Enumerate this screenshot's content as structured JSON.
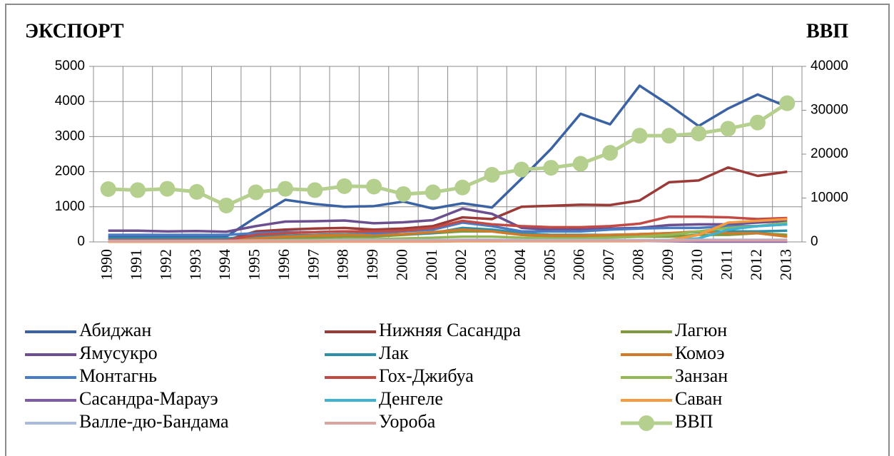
{
  "chart_data": {
    "type": "line",
    "title": "ЭКСПОРТ",
    "y2_title": "ВВП",
    "categories": [
      "1990",
      "1991",
      "1992",
      "1993",
      "1994",
      "1995",
      "1996",
      "1997",
      "1998",
      "1999",
      "2000",
      "2001",
      "2002",
      "2003",
      "2004",
      "2005",
      "2006",
      "2007",
      "2008",
      "2009",
      "2010",
      "2011",
      "2012",
      "2013"
    ],
    "ylim": [
      0,
      5000
    ],
    "yticks": [
      0,
      1000,
      2000,
      3000,
      4000,
      5000
    ],
    "y2lim": [
      0,
      40000
    ],
    "y2ticks": [
      0,
      10000,
      20000,
      30000,
      40000
    ],
    "grid": true,
    "series": [
      {
        "name": "Абиджан",
        "color": "#3b62a3",
        "values": [
          150,
          150,
          150,
          150,
          150,
          700,
          1200,
          1080,
          1000,
          1020,
          1150,
          950,
          1100,
          980,
          1800,
          2650,
          3650,
          3350,
          4450,
          3900,
          3300,
          3800,
          4200,
          3850
        ]
      },
      {
        "name": "Нижняя Сасандра",
        "color": "#9b3a36",
        "values": [
          50,
          50,
          50,
          50,
          50,
          300,
          350,
          380,
          400,
          350,
          380,
          450,
          700,
          650,
          1000,
          1030,
          1060,
          1050,
          1180,
          1700,
          1750,
          2120,
          1880,
          2000
        ]
      },
      {
        "name": "Лагюн",
        "color": "#7f9a3e",
        "values": [
          20,
          20,
          20,
          20,
          20,
          80,
          100,
          120,
          150,
          150,
          200,
          250,
          300,
          300,
          200,
          150,
          150,
          150,
          150,
          150,
          200,
          200,
          250,
          200
        ]
      },
      {
        "name": "Ямусукро",
        "color": "#6b4f8e",
        "values": [
          320,
          320,
          300,
          310,
          290,
          450,
          580,
          590,
          610,
          530,
          560,
          620,
          950,
          800,
          400,
          350,
          350,
          380,
          400,
          480,
          500,
          500,
          550,
          600
        ]
      },
      {
        "name": "Лак",
        "color": "#2e8fa8",
        "values": [
          100,
          100,
          100,
          100,
          100,
          150,
          180,
          200,
          220,
          200,
          220,
          250,
          400,
          350,
          250,
          200,
          200,
          200,
          220,
          250,
          280,
          300,
          300,
          320
        ]
      },
      {
        "name": "Комоэ",
        "color": "#d07a2a",
        "values": [
          30,
          30,
          30,
          30,
          30,
          100,
          150,
          180,
          200,
          200,
          220,
          280,
          350,
          300,
          200,
          180,
          180,
          200,
          220,
          250,
          300,
          250,
          250,
          150
        ]
      },
      {
        "name": "Монтагнь",
        "color": "#4a7cc4",
        "values": [
          200,
          200,
          200,
          200,
          200,
          250,
          280,
          280,
          300,
          250,
          300,
          350,
          550,
          450,
          300,
          300,
          300,
          350,
          380,
          400,
          400,
          450,
          450,
          500
        ]
      },
      {
        "name": "Гох-Джибуа",
        "color": "#c24a45",
        "values": [
          50,
          50,
          50,
          50,
          50,
          200,
          250,
          280,
          300,
          300,
          320,
          400,
          600,
          500,
          450,
          420,
          420,
          450,
          520,
          720,
          720,
          700,
          650,
          680
        ]
      },
      {
        "name": "Занзан",
        "color": "#95b856",
        "values": [
          10,
          10,
          10,
          10,
          10,
          30,
          50,
          60,
          80,
          80,
          100,
          120,
          150,
          150,
          120,
          100,
          100,
          120,
          150,
          200,
          300,
          400,
          450,
          550
        ]
      },
      {
        "name": "Сасандра-Марауэ",
        "color": "#7d5ba6",
        "values": [
          5,
          5,
          5,
          5,
          5,
          10,
          20,
          20,
          30,
          30,
          30,
          40,
          50,
          50,
          40,
          30,
          30,
          30,
          30,
          20,
          10,
          10,
          10,
          10
        ]
      },
      {
        "name": "Денгеле",
        "color": "#3fb2cf",
        "values": [
          5,
          5,
          5,
          5,
          5,
          10,
          10,
          10,
          20,
          20,
          20,
          30,
          30,
          30,
          30,
          30,
          30,
          30,
          40,
          50,
          100,
          350,
          450,
          500
        ]
      },
      {
        "name": "Саван",
        "color": "#f59a3e",
        "values": [
          5,
          5,
          5,
          5,
          5,
          10,
          10,
          10,
          10,
          10,
          10,
          10,
          20,
          20,
          20,
          20,
          20,
          20,
          20,
          50,
          200,
          550,
          600,
          650
        ]
      },
      {
        "name": "Валле-дю-Бандама",
        "color": "#a9bbdc",
        "values": [
          30,
          30,
          30,
          30,
          30,
          40,
          40,
          40,
          50,
          50,
          50,
          50,
          60,
          60,
          50,
          50,
          50,
          50,
          50,
          50,
          60,
          60,
          60,
          60
        ]
      },
      {
        "name": "Уороба",
        "color": "#d8a3a1",
        "values": [
          20,
          20,
          20,
          20,
          20,
          30,
          30,
          30,
          30,
          30,
          30,
          30,
          40,
          40,
          30,
          30,
          30,
          30,
          30,
          30,
          40,
          40,
          40,
          40
        ]
      },
      {
        "name": "ВВП",
        "color": "#b5cf8e",
        "axis": "y2",
        "marker": "circle",
        "values": [
          12030,
          11800,
          12100,
          11400,
          8300,
          11300,
          12100,
          11800,
          12700,
          12600,
          10900,
          11300,
          12400,
          15300,
          16500,
          16900,
          17800,
          20300,
          24200,
          24200,
          24700,
          25800,
          27200,
          31600
        ]
      }
    ]
  }
}
